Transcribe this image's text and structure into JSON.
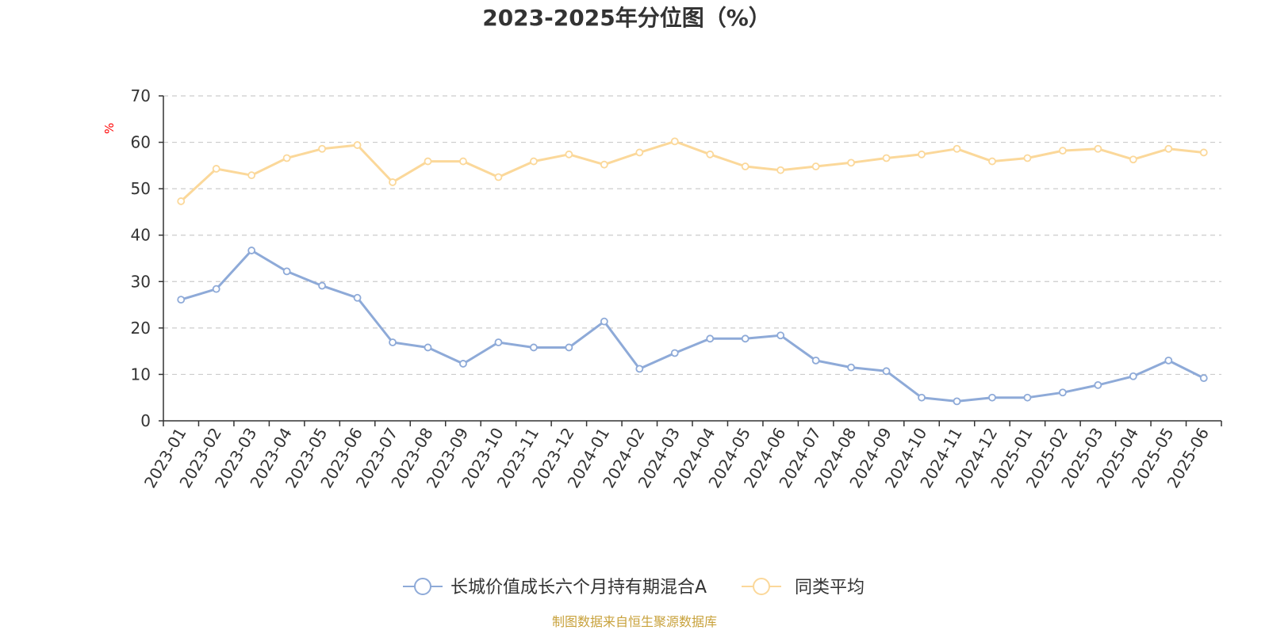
{
  "chart_data": {
    "type": "line",
    "title": "2023-2025年分位图（%）",
    "ylabel": "%",
    "ylim": [
      0,
      70
    ],
    "yticks": [
      0,
      10,
      20,
      30,
      40,
      50,
      60,
      70
    ],
    "grid": true,
    "legend_position": "bottom",
    "categories": [
      "2023-01",
      "2023-02",
      "2023-03",
      "2023-04",
      "2023-05",
      "2023-06",
      "2023-07",
      "2023-08",
      "2023-09",
      "2023-10",
      "2023-11",
      "2023-12",
      "2024-01",
      "2024-02",
      "2024-03",
      "2024-04",
      "2024-05",
      "2024-06",
      "2024-07",
      "2024-08",
      "2024-09",
      "2024-10",
      "2024-11",
      "2024-12",
      "2025-01",
      "2025-02",
      "2025-03",
      "2025-04",
      "2025-05",
      "2025-06"
    ],
    "series": [
      {
        "name": "长城价值成长六个月持有期混合A",
        "color": "#8eaad8",
        "values": [
          26.1,
          28.4,
          36.7,
          32.2,
          29.1,
          26.5,
          16.9,
          15.8,
          12.3,
          16.9,
          15.8,
          15.8,
          21.4,
          11.2,
          14.6,
          17.7,
          17.7,
          18.4,
          13.0,
          11.5,
          10.7,
          5.0,
          4.2,
          5.0,
          5.0,
          6.1,
          7.7,
          9.6,
          13.0,
          9.2
        ]
      },
      {
        "name": "同类平均",
        "color": "#fbd89a",
        "values": [
          47.3,
          54.3,
          52.9,
          56.6,
          58.6,
          59.4,
          51.4,
          55.9,
          55.9,
          52.5,
          55.9,
          57.4,
          55.2,
          57.8,
          60.2,
          57.4,
          54.8,
          54.0,
          54.8,
          55.6,
          56.6,
          57.4,
          58.6,
          55.9,
          56.6,
          58.2,
          58.6,
          56.3,
          58.6,
          57.8
        ]
      }
    ]
  },
  "source_note": "制图数据来自恒生聚源数据库"
}
